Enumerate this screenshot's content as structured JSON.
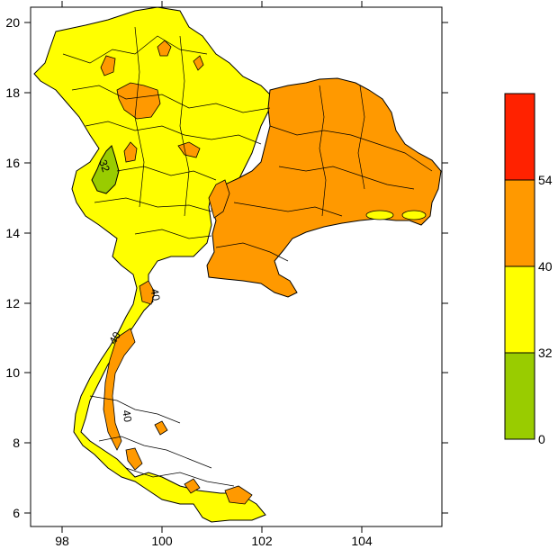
{
  "map": {
    "x_ticks": [
      "98",
      "100",
      "102",
      "104"
    ],
    "y_ticks": [
      "20",
      "18",
      "16",
      "14",
      "12",
      "10",
      "8",
      "6"
    ],
    "colorbar": {
      "bands": [
        {
          "range": "0-32",
          "color": "#99cc00"
        },
        {
          "range": "32-40",
          "color": "#ffff00"
        },
        {
          "range": "40-54",
          "color": "#ff9900"
        },
        {
          "range": "54+",
          "color": "#ff2200"
        }
      ],
      "labels": [
        "54",
        "40",
        "32",
        "0"
      ]
    },
    "contour_labels": [
      "32",
      "40",
      "40",
      "40"
    ],
    "colors": {
      "yellow": "#ffff00",
      "orange": "#ff9900",
      "green": "#99cc00",
      "red": "#ff2200",
      "border": "#000000"
    }
  }
}
